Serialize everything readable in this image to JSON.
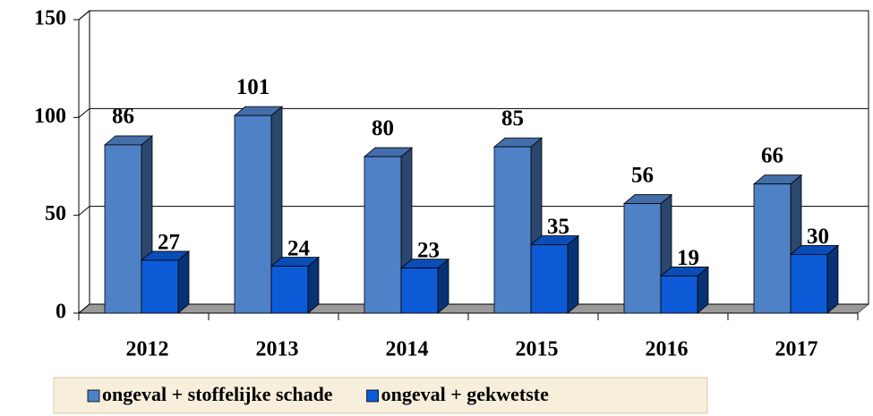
{
  "chart_data": {
    "type": "bar3d",
    "categories": [
      "2012",
      "2013",
      "2014",
      "2015",
      "2016",
      "2017"
    ],
    "series": [
      {
        "name": "ongeval + stoffelijke schade",
        "color": "#4f81c7",
        "values": [
          86,
          101,
          80,
          85,
          56,
          66
        ]
      },
      {
        "name": "ongeval + gekwetste",
        "color": "#0d5ad6",
        "values": [
          27,
          24,
          23,
          35,
          19,
          30
        ]
      }
    ],
    "ylim": [
      0,
      150
    ],
    "yticks": [
      0,
      50,
      100,
      150
    ],
    "grid": true,
    "legend": "bottom"
  }
}
